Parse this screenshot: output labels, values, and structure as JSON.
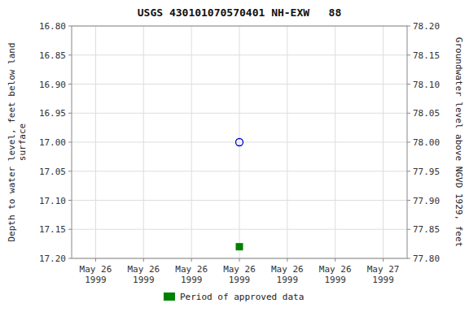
{
  "chart_data": {
    "type": "scatter",
    "title": "USGS 430101070570401 NH-EXW   88",
    "ylabel": "Depth to water level, feet below land\nsurface",
    "y2label": "Groundwater level above NGVD 1929, feet",
    "categories": [
      "May 26\n1999",
      "May 26\n1999",
      "May 26\n1999",
      "May 26\n1999",
      "May 26\n1999",
      "May 26\n1999",
      "May 27\n1999"
    ],
    "series": [
      {
        "color": "#0000cc",
        "marker": "open-circle",
        "values": [
          null,
          null,
          null,
          17.0,
          null,
          null,
          null
        ]
      },
      {
        "name": "Period of approved data",
        "color": "#008000",
        "marker": "square",
        "values": [
          null,
          null,
          null,
          17.18,
          null,
          null,
          null
        ]
      }
    ],
    "ylim": [
      17.2,
      16.8
    ],
    "yticks": [
      {
        "value": 16.8,
        "label": "16.80"
      },
      16.85,
      {
        "value": 16.9,
        "label": "16.90"
      },
      16.95,
      {
        "value": 17.0,
        "label": "17.00"
      },
      17.05,
      {
        "value": 17.1,
        "label": "17.10"
      },
      17.15,
      {
        "value": 17.2,
        "label": "17.20"
      }
    ],
    "y2lim": [
      77.8,
      78.2
    ],
    "y2ticks": [
      {
        "value": 78.2,
        "label": "78.20"
      },
      78.15,
      {
        "value": 78.1,
        "label": "78.10"
      },
      78.05,
      {
        "value": 78.0,
        "label": "78.00"
      },
      77.95,
      {
        "value": 77.9,
        "label": "77.90"
      },
      77.85,
      {
        "value": 77.8,
        "label": "77.80"
      }
    ],
    "grid": true,
    "legend": "bottom"
  }
}
